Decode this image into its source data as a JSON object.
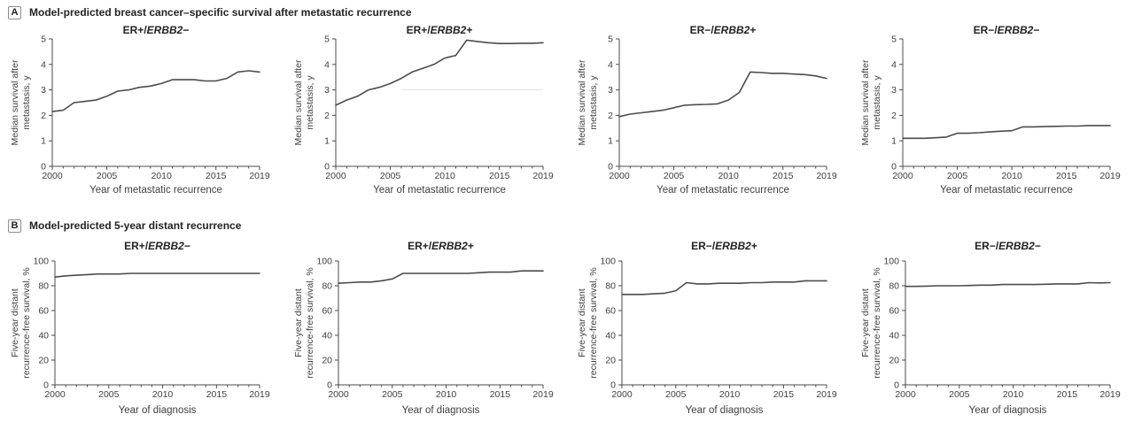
{
  "panels": [
    {
      "label": "A",
      "title": "Model-predicted breast cancer–specific survival after metastatic recurrence"
    },
    {
      "label": "B",
      "title": "Model-predicted 5-year distant recurrence"
    }
  ],
  "style": {
    "background": "#ffffff",
    "line_color": "#494c4e",
    "axis_color": "#4b4b4b",
    "tick_text_color": "#3f3f3f",
    "title_color": "#232323",
    "ref_line_color": "#e2e2e2"
  },
  "chart_data": [
    {
      "type": "line",
      "row": "A",
      "title": "ER+/ERBB2−",
      "xlabel": "Year of metastatic recurrence",
      "ylabel_lines": [
        "Median survival after",
        "metastasis, y"
      ],
      "ylim": [
        0,
        5
      ],
      "yticks": [
        0,
        1,
        2,
        3,
        4,
        5
      ],
      "xlim": [
        2000,
        2019
      ],
      "xticks_labeled": [
        2000,
        2005,
        2010,
        2015,
        2019
      ],
      "x": [
        2000,
        2001,
        2002,
        2003,
        2004,
        2005,
        2006,
        2007,
        2008,
        2009,
        2010,
        2011,
        2012,
        2013,
        2014,
        2015,
        2016,
        2017,
        2018,
        2019
      ],
      "values": [
        2.15,
        2.2,
        2.5,
        2.55,
        2.6,
        2.75,
        2.95,
        3.0,
        3.1,
        3.15,
        3.25,
        3.4,
        3.4,
        3.4,
        3.35,
        3.35,
        3.45,
        3.7,
        3.75,
        3.7
      ]
    },
    {
      "type": "line",
      "row": "A",
      "title": "ER+/ERBB2+",
      "xlabel": "Year of metastatic recurrence",
      "ylabel_lines": [
        "Median survival after",
        "metastasis, y"
      ],
      "ylim": [
        0,
        5
      ],
      "yticks": [
        0,
        1,
        2,
        3,
        4,
        5
      ],
      "xlim": [
        2000,
        2019
      ],
      "xticks_labeled": [
        2000,
        2005,
        2010,
        2015,
        2019
      ],
      "x": [
        2000,
        2001,
        2002,
        2003,
        2004,
        2005,
        2006,
        2007,
        2008,
        2009,
        2010,
        2011,
        2012,
        2013,
        2014,
        2015,
        2016,
        2017,
        2018,
        2019
      ],
      "values": [
        2.4,
        2.6,
        2.75,
        3.0,
        3.1,
        3.25,
        3.45,
        3.7,
        3.85,
        4.0,
        4.25,
        4.35,
        4.95,
        4.9,
        4.85,
        4.82,
        4.82,
        4.83,
        4.83,
        4.85
      ],
      "ref_line": {
        "y": 3,
        "x0": 2006,
        "x1": 2019
      }
    },
    {
      "type": "line",
      "row": "A",
      "title": "ER−/ERBB2+",
      "xlabel": "Year of metastatic recurrence",
      "ylabel_lines": [
        "Median survival after",
        "metastasis, y"
      ],
      "ylim": [
        0,
        5
      ],
      "yticks": [
        0,
        1,
        2,
        3,
        4,
        5
      ],
      "xlim": [
        2000,
        2019
      ],
      "xticks_labeled": [
        2000,
        2005,
        2010,
        2015,
        2019
      ],
      "x": [
        2000,
        2001,
        2002,
        2003,
        2004,
        2005,
        2006,
        2007,
        2008,
        2009,
        2010,
        2011,
        2012,
        2013,
        2014,
        2015,
        2016,
        2017,
        2018,
        2019
      ],
      "values": [
        1.95,
        2.05,
        2.1,
        2.15,
        2.2,
        2.3,
        2.4,
        2.42,
        2.43,
        2.45,
        2.6,
        2.9,
        3.7,
        3.68,
        3.65,
        3.65,
        3.62,
        3.6,
        3.55,
        3.45
      ]
    },
    {
      "type": "line",
      "row": "A",
      "title": "ER−/ERBB2−",
      "xlabel": "Year of metastatic recurrence",
      "ylabel_lines": [
        "Median survival after",
        "metastasis, y"
      ],
      "ylim": [
        0,
        5
      ],
      "yticks": [
        0,
        1,
        2,
        3,
        4,
        5
      ],
      "xlim": [
        2000,
        2019
      ],
      "xticks_labeled": [
        2000,
        2005,
        2010,
        2015,
        2019
      ],
      "x": [
        2000,
        2001,
        2002,
        2003,
        2004,
        2005,
        2006,
        2007,
        2008,
        2009,
        2010,
        2011,
        2012,
        2013,
        2014,
        2015,
        2016,
        2017,
        2018,
        2019
      ],
      "values": [
        1.1,
        1.1,
        1.1,
        1.12,
        1.15,
        1.3,
        1.3,
        1.32,
        1.35,
        1.38,
        1.4,
        1.55,
        1.55,
        1.56,
        1.57,
        1.58,
        1.58,
        1.6,
        1.6,
        1.6
      ]
    },
    {
      "type": "line",
      "row": "B",
      "title": "ER+/ERBB2−",
      "xlabel": "Year of diagnosis",
      "ylabel_lines": [
        "Five-year distant",
        "recurrence-free survival, %"
      ],
      "ylim": [
        0,
        100
      ],
      "yticks": [
        0,
        20,
        40,
        60,
        80,
        100
      ],
      "xlim": [
        2000,
        2019
      ],
      "xticks_labeled": [
        2000,
        2005,
        2010,
        2015,
        2019
      ],
      "x": [
        2000,
        2001,
        2002,
        2003,
        2004,
        2005,
        2006,
        2007,
        2008,
        2009,
        2010,
        2011,
        2012,
        2013,
        2014,
        2015,
        2016,
        2017,
        2018,
        2019
      ],
      "values": [
        87,
        88,
        88.5,
        89,
        89.5,
        89.5,
        89.5,
        90,
        90,
        90,
        90,
        90,
        90,
        90,
        90,
        90,
        90,
        90,
        90,
        90
      ]
    },
    {
      "type": "line",
      "row": "B",
      "title": "ER+/ERBB2+",
      "xlabel": "Year of diagnosis",
      "ylabel_lines": [
        "Five-year distant",
        "recurrence-free survival, %"
      ],
      "ylim": [
        0,
        100
      ],
      "yticks": [
        0,
        20,
        40,
        60,
        80,
        100
      ],
      "xlim": [
        2000,
        2019
      ],
      "xticks_labeled": [
        2000,
        2005,
        2010,
        2015,
        2019
      ],
      "x": [
        2000,
        2001,
        2002,
        2003,
        2004,
        2005,
        2006,
        2007,
        2008,
        2009,
        2010,
        2011,
        2012,
        2013,
        2014,
        2015,
        2016,
        2017,
        2018,
        2019
      ],
      "values": [
        82,
        82.5,
        83,
        83,
        84,
        85.5,
        90,
        90,
        90,
        90,
        90,
        90,
        90,
        90.5,
        91,
        91,
        91,
        92,
        92,
        92
      ]
    },
    {
      "type": "line",
      "row": "B",
      "title": "ER−/ERBB2+",
      "xlabel": "Year of diagnosis",
      "ylabel_lines": [
        "Five-year distant",
        "recurrence-free survival, %"
      ],
      "ylim": [
        0,
        100
      ],
      "yticks": [
        0,
        20,
        40,
        60,
        80,
        100
      ],
      "xlim": [
        2000,
        2019
      ],
      "xticks_labeled": [
        2000,
        2005,
        2010,
        2015,
        2019
      ],
      "x": [
        2000,
        2001,
        2002,
        2003,
        2004,
        2005,
        2006,
        2007,
        2008,
        2009,
        2010,
        2011,
        2012,
        2013,
        2014,
        2015,
        2016,
        2017,
        2018,
        2019
      ],
      "values": [
        73,
        73,
        73,
        73.5,
        74,
        76,
        82.5,
        81.5,
        81.5,
        82,
        82,
        82,
        82.5,
        82.5,
        83,
        83,
        83,
        84,
        84,
        84
      ]
    },
    {
      "type": "line",
      "row": "B",
      "title": "ER−/ERBB2−",
      "xlabel": "Year of diagnosis",
      "ylabel_lines": [
        "Five-year distant",
        "recurrence-free survival, %"
      ],
      "ylim": [
        0,
        100
      ],
      "yticks": [
        0,
        20,
        40,
        60,
        80,
        100
      ],
      "xlim": [
        2000,
        2019
      ],
      "xticks_labeled": [
        2000,
        2005,
        2010,
        2015,
        2019
      ],
      "x": [
        2000,
        2001,
        2002,
        2003,
        2004,
        2005,
        2006,
        2007,
        2008,
        2009,
        2010,
        2011,
        2012,
        2013,
        2014,
        2015,
        2016,
        2017,
        2018,
        2019
      ],
      "values": [
        79.5,
        79.5,
        79.7,
        80,
        80,
        80,
        80.2,
        80.5,
        80.5,
        81,
        81,
        81,
        81,
        81.2,
        81.5,
        81.5,
        81.5,
        82.5,
        82.3,
        82.5
      ]
    }
  ]
}
